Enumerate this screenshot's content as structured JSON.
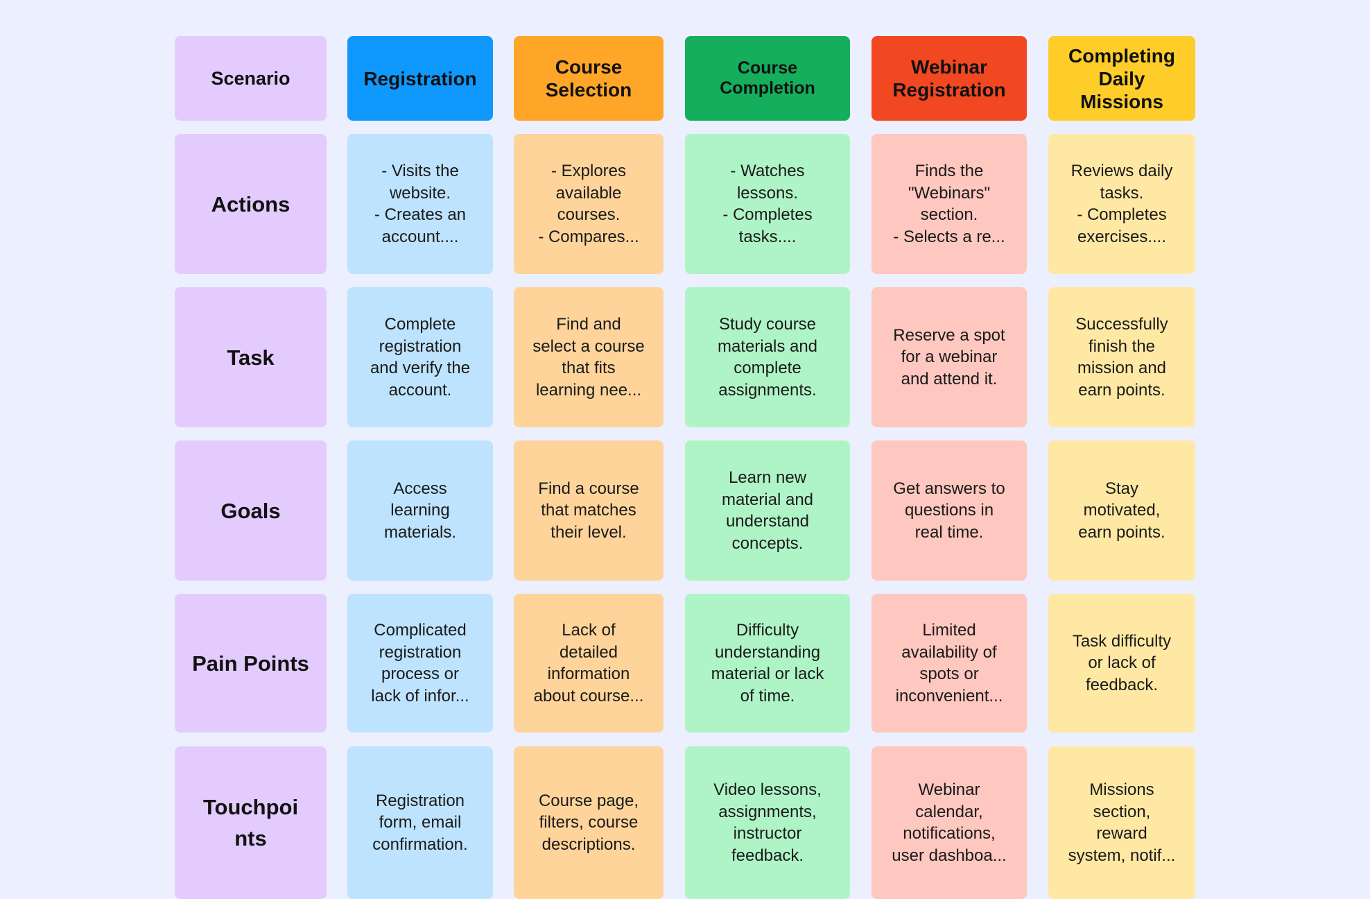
{
  "headers": {
    "scenario": "Scenario",
    "registration": "Registration",
    "course_selection": "Course\nSelection",
    "course_completion": "Course\nCompletion",
    "webinar_registration": "Webinar\nRegistration",
    "daily_missions": "Completing\nDaily Missions"
  },
  "rows": {
    "actions": {
      "label": "Actions",
      "registration": "- Visits the\nwebsite.\n- Creates an\naccount....",
      "course_selection": "- Explores\navailable\ncourses.\n- Compares...",
      "course_completion": "- Watches\nlessons.\n- Completes\ntasks....",
      "webinar_registration": "Finds the\n\"Webinars\"\nsection.\n- Selects a re...",
      "daily_missions": "Reviews daily\ntasks.\n- Completes\nexercises...."
    },
    "task": {
      "label": "Task",
      "registration": "Complete\nregistration\nand verify the\naccount.",
      "course_selection": "Find and\nselect a course\nthat fits\nlearning nee...",
      "course_completion": "Study course\nmaterials and\ncomplete\nassignments.",
      "webinar_registration": "Reserve a spot\nfor a webinar\nand attend it.",
      "daily_missions": "Successfully\nfinish the\nmission and\nearn points."
    },
    "goals": {
      "label": "Goals",
      "registration": "Access\nlearning\nmaterials.",
      "course_selection": "Find a course\nthat matches\ntheir level.",
      "course_completion": "Learn new\nmaterial and\nunderstand\nconcepts.",
      "webinar_registration": "Get answers to\nquestions in\nreal time.",
      "daily_missions": "Stay\nmotivated,\nearn points."
    },
    "pain_points": {
      "label": "Pain Points",
      "registration": "Complicated\nregistration\nprocess or\nlack of infor...",
      "course_selection": "Lack of\ndetailed\ninformation\nabout course...",
      "course_completion": "Difficulty\nunderstanding\nmaterial or lack\nof time.",
      "webinar_registration": "Limited\navailability of\nspots or\ninconvenient...",
      "daily_missions": "Task difficulty\nor lack of\nfeedback."
    },
    "touchpoints": {
      "label": "Touchpoi\nnts",
      "registration": "Registration\nform, email\nconfirmation.",
      "course_selection": "Course page,\nfilters, course\ndescriptions.",
      "course_completion": "Video lessons,\nassignments,\ninstructor\nfeedback.",
      "webinar_registration": "Webinar\ncalendar,\nnotifications,\nuser dashboa...",
      "daily_missions": "Missions\nsection,\nreward\nsystem, notif..."
    }
  },
  "colors": {
    "background": "#eceffd",
    "scenario": "#e3ccfd",
    "registration_header": "#0f99ff",
    "registration_cell": "#bde3fe",
    "course_selection_header": "#ffa629",
    "course_selection_cell": "#fed49a",
    "course_completion_header": "#14ae5c",
    "course_completion_cell": "#aff4c6",
    "webinar_header": "#f24822",
    "webinar_cell": "#fec7bf",
    "missions_header": "#ffcd29",
    "missions_cell": "#ffe8a3"
  }
}
